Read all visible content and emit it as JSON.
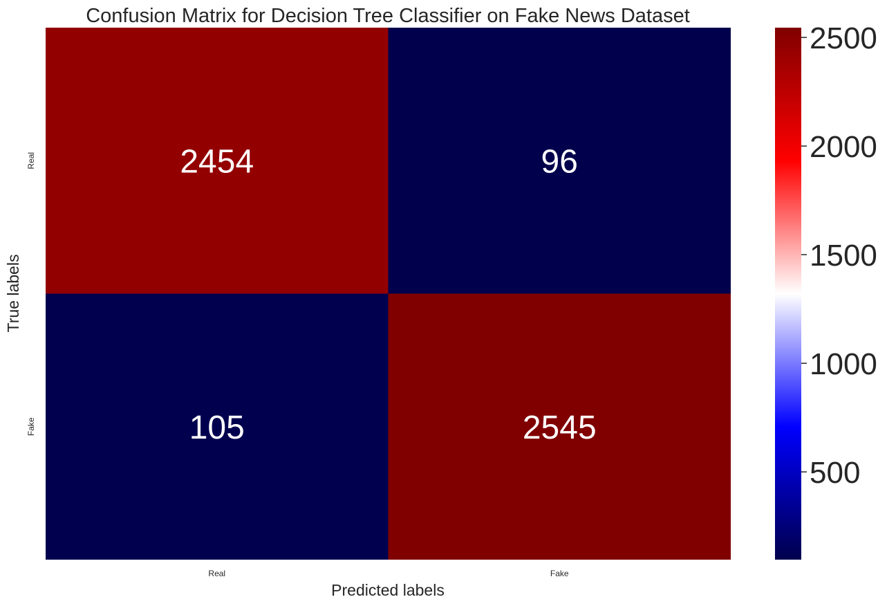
{
  "chart_data": {
    "type": "heatmap",
    "title": "Confusion Matrix for Decision Tree Classifier on Fake News Dataset",
    "xlabel": "Predicted labels",
    "ylabel": "True labels",
    "x_categories": [
      "Real",
      "Fake"
    ],
    "y_categories": [
      "Real",
      "Fake"
    ],
    "values": [
      [
        2454,
        96
      ],
      [
        105,
        2545
      ]
    ],
    "value_labels": [
      [
        "2454",
        "96"
      ],
      [
        "105",
        "2545"
      ]
    ],
    "colormap": "seismic",
    "colorbar": {
      "range": [
        96,
        2545
      ],
      "ticks": [
        500,
        1000,
        1500,
        2000,
        2500
      ],
      "tick_labels": [
        "500",
        "1000",
        "1500",
        "2000",
        "2500"
      ],
      "placement": "right"
    },
    "colors": {
      "low": "#00004c",
      "mid_blue": "#0000ff",
      "center": "#ffffff",
      "mid_red": "#ff0000",
      "high": "#800000"
    }
  }
}
